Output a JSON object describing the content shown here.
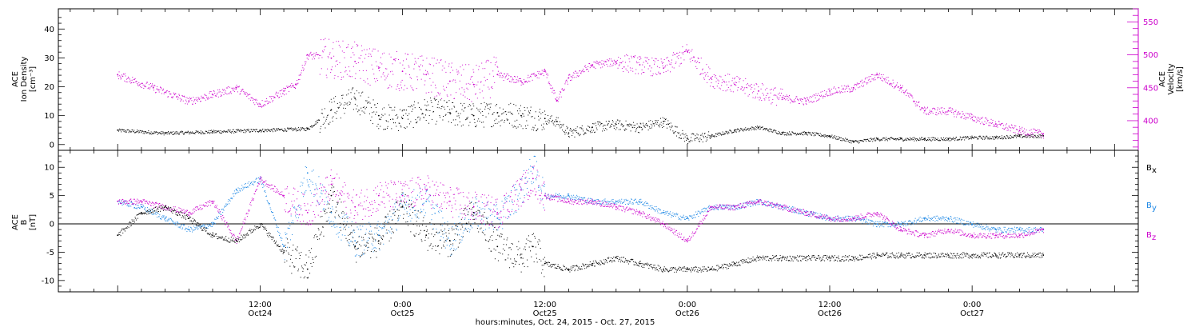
{
  "chart_data": [
    {
      "type": "scatter",
      "panel": "top",
      "ylabel_left": [
        "ACE",
        "Ion Density",
        "[cm⁻³]"
      ],
      "ylabel_right": [
        "ACE",
        "Velocity",
        "[km/s]"
      ],
      "left_axis": {
        "range": [
          -2,
          47
        ],
        "ticks": [
          0,
          10,
          20,
          30,
          40
        ]
      },
      "right_axis": {
        "range": [
          355,
          570
        ],
        "ticks": [
          400,
          450,
          500,
          550
        ],
        "color": "#cc00cc"
      },
      "series": [
        {
          "axis": "left",
          "color": "#000000",
          "x": [
            0,
            4,
            8,
            12,
            16,
            18,
            20,
            22,
            24,
            26,
            28,
            30,
            32,
            34,
            36,
            37,
            38,
            40,
            42,
            44,
            46,
            48,
            50,
            52,
            54,
            56,
            58,
            60,
            62,
            64,
            66,
            68,
            70,
            72,
            74,
            76,
            78
          ],
          "y": [
            5,
            4,
            4.5,
            5,
            5.5,
            12,
            16,
            10,
            9,
            12,
            11,
            10,
            11,
            10,
            9,
            8,
            4,
            6,
            7,
            6,
            8,
            2,
            3,
            5,
            6,
            4,
            4,
            3,
            1,
            2,
            2,
            2,
            2,
            2.5,
            2.5,
            3,
            3
          ]
        },
        {
          "axis": "right",
          "color": "#cc00cc",
          "x": [
            0,
            3,
            6,
            8,
            10,
            12,
            14,
            15,
            16,
            18,
            20,
            22,
            24,
            26,
            28,
            30,
            32,
            34,
            36,
            37,
            38,
            40,
            42,
            44,
            46,
            48,
            50,
            52,
            54,
            56,
            58,
            60,
            62,
            64,
            66,
            68,
            70,
            72,
            74,
            76,
            78
          ],
          "y": [
            470,
            450,
            430,
            440,
            450,
            425,
            445,
            455,
            500,
            495,
            490,
            480,
            475,
            470,
            460,
            455,
            470,
            460,
            475,
            430,
            465,
            485,
            490,
            485,
            480,
            505,
            465,
            455,
            445,
            435,
            430,
            445,
            450,
            470,
            450,
            415,
            415,
            405,
            395,
            385,
            380
          ]
        }
      ]
    },
    {
      "type": "scatter",
      "panel": "bottom",
      "ylabel_left": [
        "ACE",
        "B",
        "[nT]"
      ],
      "left_axis": {
        "range": [
          -12,
          13
        ],
        "ticks": [
          -10,
          -5,
          0,
          5,
          10
        ]
      },
      "zero_line": true,
      "x_axis": {
        "range": [
          -5,
          86
        ],
        "ticks": [
          12,
          24,
          36,
          48,
          60,
          72
        ],
        "tick_labels": [
          [
            "12:00",
            "Oct24"
          ],
          [
            "0:00",
            "Oct25"
          ],
          [
            "12:00",
            "Oct25"
          ],
          [
            "0:00",
            "Oct26"
          ],
          [
            "12:00",
            "Oct26"
          ],
          [
            "0:00",
            "Oct27"
          ]
        ],
        "xlabel": "hours:minutes, Oct. 24, 2015 - Oct. 27, 2015"
      },
      "legend_position": "right",
      "series": [
        {
          "name": "Bx",
          "color": "#000000",
          "x": [
            0,
            2,
            4,
            6,
            8,
            10,
            12,
            14,
            16,
            18,
            20,
            22,
            24,
            26,
            28,
            30,
            32,
            34,
            35,
            36,
            38,
            40,
            42,
            44,
            46,
            48,
            50,
            52,
            54,
            56,
            58,
            60,
            62,
            64,
            66,
            68,
            70,
            72,
            74,
            76,
            78
          ],
          "y": [
            -2,
            2,
            3,
            1,
            -2,
            -3,
            0,
            -5,
            -8,
            5,
            -4,
            -3,
            3,
            -2,
            -3,
            2,
            -4,
            -6,
            -4,
            -7,
            -8,
            -7,
            -6,
            -7,
            -8,
            -8,
            -8,
            -7,
            -6,
            -6,
            -6,
            -6,
            -6,
            -5.5,
            -5.5,
            -5.5,
            -5.5,
            -5.5,
            -5.5,
            -5.5,
            -5.5
          ]
        },
        {
          "name": "By",
          "color": "#1e88e5",
          "x": [
            0,
            2,
            4,
            6,
            8,
            10,
            12,
            14,
            16,
            18,
            20,
            22,
            24,
            26,
            28,
            30,
            32,
            34,
            35,
            36,
            38,
            40,
            42,
            44,
            46,
            48,
            50,
            52,
            54,
            56,
            58,
            60,
            62,
            64,
            66,
            68,
            70,
            72,
            74,
            76,
            78
          ],
          "y": [
            4,
            3,
            1,
            -1,
            0,
            6,
            8,
            -4,
            9,
            2,
            -3,
            -2,
            3,
            4,
            -3,
            2,
            1,
            6,
            10,
            5,
            5,
            4,
            4,
            4,
            2,
            1,
            3,
            3,
            4,
            3,
            2,
            1,
            1,
            0,
            0,
            1,
            1,
            0,
            -1,
            -1,
            -1
          ]
        },
        {
          "name": "Bz",
          "color": "#cc00cc",
          "x": [
            0,
            2,
            4,
            6,
            8,
            10,
            12,
            14,
            16,
            18,
            20,
            22,
            24,
            26,
            28,
            30,
            32,
            34,
            35,
            36,
            38,
            40,
            42,
            44,
            46,
            48,
            50,
            52,
            54,
            56,
            58,
            60,
            62,
            64,
            66,
            68,
            70,
            72,
            74,
            76,
            78
          ],
          "y": [
            4,
            4,
            3,
            2,
            4,
            -3,
            8,
            5,
            2,
            7,
            3,
            5,
            5,
            6,
            4,
            3,
            2,
            6,
            8,
            5,
            4,
            4,
            3,
            2,
            0,
            -3,
            3,
            3,
            4,
            3,
            2,
            1,
            1,
            2,
            -1,
            -2,
            -1,
            -2,
            -2,
            -2,
            -1
          ]
        }
      ]
    }
  ]
}
